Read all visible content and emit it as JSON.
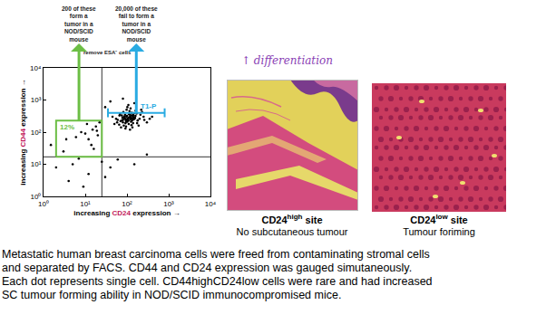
{
  "chart_data": {
    "type": "scatter",
    "log": true,
    "grid": false,
    "xlabel": "increasing CD24 expression →",
    "ylabel": "increasing CD44 expression →",
    "color": "#000000",
    "marker": "dot",
    "x": [
      100,
      120,
      80,
      150,
      90,
      200,
      110,
      70,
      130,
      60,
      160,
      95,
      85,
      140,
      180,
      75,
      105,
      125,
      115,
      65,
      250,
      300,
      55,
      170,
      135,
      88,
      98,
      112,
      145,
      78,
      45,
      50,
      210,
      230,
      350,
      400,
      190,
      82,
      92,
      102,
      122,
      142,
      162,
      68,
      58,
      72,
      118,
      132,
      155,
      175,
      220,
      260,
      108,
      88,
      96,
      128,
      148,
      66,
      76,
      84,
      15,
      20,
      12,
      18,
      8,
      22,
      14,
      10,
      16,
      6,
      19,
      11,
      3,
      5,
      2,
      4,
      7,
      12,
      25,
      40,
      60,
      30,
      150,
      300,
      9,
      1.5,
      3.5,
      40,
      80,
      150,
      30,
      90,
      105,
      115,
      125,
      95,
      85,
      135,
      100,
      110,
      120,
      140,
      80,
      150,
      92,
      102,
      130,
      118,
      108,
      97,
      126
    ],
    "values": [
      250,
      300,
      200,
      280,
      350,
      260,
      180,
      220,
      400,
      240,
      320,
      150,
      290,
      190,
      230,
      330,
      270,
      210,
      450,
      170,
      300,
      200,
      260,
      380,
      140,
      310,
      500,
      360,
      250,
      280,
      300,
      180,
      350,
      420,
      260,
      300,
      160,
      420,
      130,
      600,
      550,
      340,
      470,
      370,
      200,
      140,
      120,
      230,
      280,
      190,
      500,
      240,
      700,
      260,
      210,
      165,
      390,
      330,
      230,
      160,
      120,
      80,
      60,
      150,
      100,
      200,
      40,
      90,
      30,
      70,
      110,
      180,
      25,
      10,
      8,
      3,
      15,
      5,
      12,
      8,
      14,
      4,
      10,
      20,
      2,
      40,
      60,
      900,
      1100,
      800,
      600,
      260,
      240,
      290,
      270,
      230,
      300,
      260,
      320,
      280,
      250,
      300,
      240,
      260,
      190,
      210,
      330,
      350,
      230,
      300,
      280
    ],
    "xlim": [
      1,
      10000
    ],
    "ylim": [
      1,
      10000
    ],
    "xticks": [
      {
        "value": 1,
        "label": "10⁰"
      },
      {
        "value": 10,
        "label": "10¹"
      },
      {
        "value": 100,
        "label": "10²"
      },
      {
        "value": 1000,
        "label": "10³"
      },
      {
        "value": 10000,
        "label": "10⁴"
      }
    ],
    "yticks": [
      {
        "value": 1,
        "label": "10⁰"
      },
      {
        "value": 10,
        "label": "10¹"
      },
      {
        "value": 100,
        "label": "10²"
      },
      {
        "value": 1000,
        "label": "10³"
      },
      {
        "value": 10000,
        "label": "10⁴"
      }
    ],
    "quadrant": {
      "x": 25,
      "y": 17
    },
    "gates": [
      {
        "label": "12%",
        "color": "#6cbe45",
        "x": [
          2,
          25
        ],
        "y": [
          17,
          230
        ],
        "note": [
          "200 of these",
          "form a",
          "tumor in a",
          "NOD/SCID",
          "mouse"
        ]
      },
      {
        "label": "T1-P",
        "color": "#29abe2",
        "x": [
          35,
          800
        ],
        "y": [
          400,
          400
        ],
        "note": [
          "20,000 of these",
          "fail to form a",
          "tumor in a",
          "NOD/SCID",
          "mouse"
        ]
      }
    ],
    "annotations": [
      "remove ESA⁻ cells"
    ]
  },
  "figure": {
    "note": "↑ differentiation",
    "panels": [
      {
        "title": "CD24",
        "superscript": "high",
        "suffix": "site",
        "caption": "No subcutaneous tumour"
      },
      {
        "title": "CD24",
        "superscript": "low",
        "suffix": "site",
        "caption": "Tumour foriming"
      }
    ],
    "caption": [
      "Metastatic human breast carcinoma cells were freed from contaminating stromal cells",
      "and separated by FACS. CD44 and CD24 expression was gauged simutaneously.",
      "Each dot represents single cell. CD44highCD24low cells were rare and had increased",
      "SC tumour forming ability in NOD/SCID immunocompromised mice."
    ]
  }
}
